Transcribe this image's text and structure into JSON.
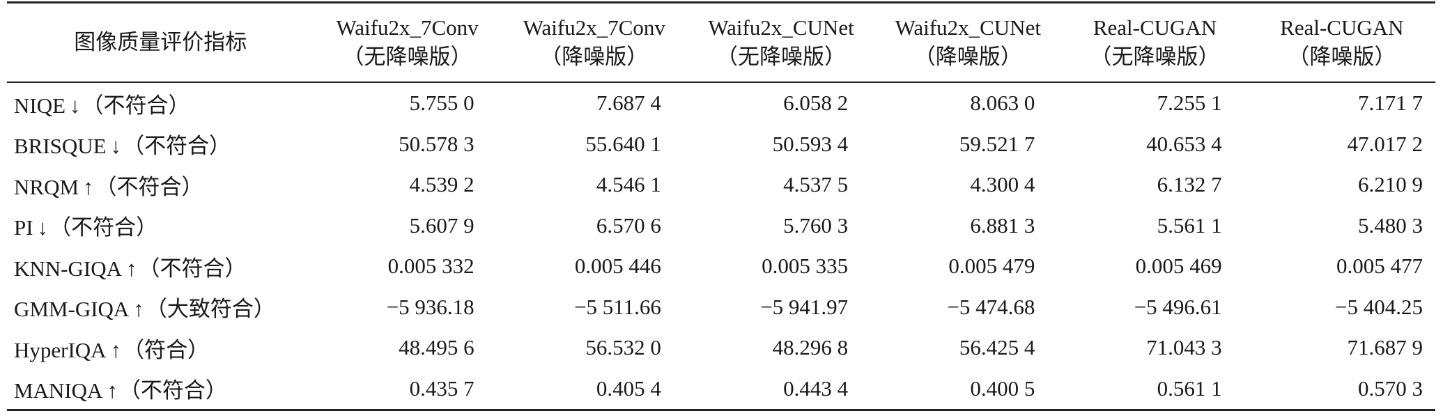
{
  "table": {
    "corner_header": "图像质量评价指标",
    "columns": [
      {
        "line1": "Waifu2x_7Conv",
        "line2": "（无降噪版）"
      },
      {
        "line1": "Waifu2x_7Conv",
        "line2": "（降噪版）"
      },
      {
        "line1": "Waifu2x_CUNet",
        "line2": "（无降噪版）"
      },
      {
        "line1": "Waifu2x_CUNet",
        "line2": "（降噪版）"
      },
      {
        "line1": "Real-CUGAN",
        "line2": "（无降噪版）"
      },
      {
        "line1": "Real-CUGAN",
        "line2": "（降噪版）"
      }
    ],
    "rows": [
      {
        "name": "NIQE",
        "arrow": "↓",
        "note": "（不符合）",
        "values": [
          "5.755 0",
          "7.687 4",
          "6.058 2",
          "8.063 0",
          "7.255 1",
          "7.171 7"
        ]
      },
      {
        "name": "BRISQUE",
        "arrow": "↓",
        "note": "（不符合）",
        "values": [
          "50.578 3",
          "55.640 1",
          "50.593 4",
          "59.521 7",
          "40.653 4",
          "47.017 2"
        ]
      },
      {
        "name": "NRQM",
        "arrow": "↑",
        "note": "（不符合）",
        "values": [
          "4.539 2",
          "4.546 1",
          "4.537 5",
          "4.300 4",
          "6.132 7",
          "6.210 9"
        ]
      },
      {
        "name": "PI",
        "arrow": "↓",
        "note": "（不符合）",
        "values": [
          "5.607 9",
          "6.570 6",
          "5.760 3",
          "6.881 3",
          "5.561 1",
          "5.480 3"
        ]
      },
      {
        "name": "KNN-GIQA",
        "arrow": "↑",
        "note": "（不符合）",
        "values": [
          "0.005 332",
          "0.005 446",
          "0.005 335",
          "0.005 479",
          "0.005 469",
          "0.005 477"
        ]
      },
      {
        "name": "GMM-GIQA",
        "arrow": "↑",
        "note": "（大致符合）",
        "values": [
          "−5 936.18",
          "−5 511.66",
          "−5 941.97",
          "−5 474.68",
          "−5 496.61",
          "−5 404.25"
        ]
      },
      {
        "name": "HyperIQA",
        "arrow": "↑",
        "note": "（符合）",
        "values": [
          "48.495 6",
          "56.532 0",
          "48.296 8",
          "56.425 4",
          "71.043 3",
          "71.687 9"
        ]
      },
      {
        "name": "MANIQA",
        "arrow": "↑",
        "note": "（不符合）",
        "values": [
          "0.435 7",
          "0.405 4",
          "0.443 4",
          "0.400 5",
          "0.561 1",
          "0.570 3"
        ]
      }
    ]
  }
}
